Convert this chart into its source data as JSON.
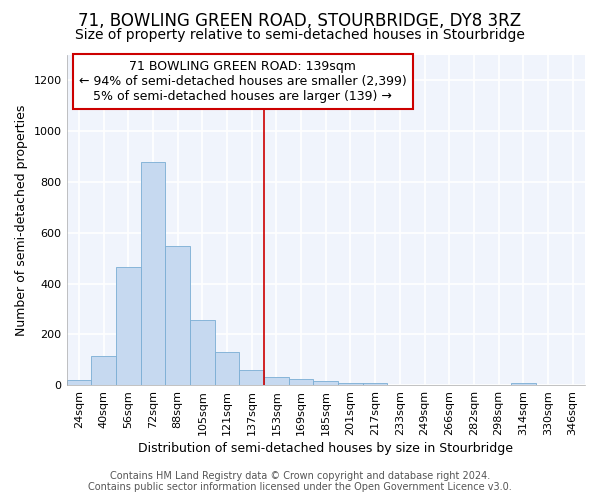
{
  "title": "71, BOWLING GREEN ROAD, STOURBRIDGE, DY8 3RZ",
  "subtitle": "Size of property relative to semi-detached houses in Stourbridge",
  "xlabel": "Distribution of semi-detached houses by size in Stourbridge",
  "ylabel": "Number of semi-detached properties",
  "categories": [
    "24sqm",
    "40sqm",
    "56sqm",
    "72sqm",
    "88sqm",
    "105sqm",
    "121sqm",
    "137sqm",
    "153sqm",
    "169sqm",
    "185sqm",
    "201sqm",
    "217sqm",
    "233sqm",
    "249sqm",
    "266sqm",
    "282sqm",
    "298sqm",
    "314sqm",
    "330sqm",
    "346sqm"
  ],
  "values": [
    20,
    115,
    465,
    880,
    548,
    255,
    130,
    60,
    30,
    22,
    15,
    10,
    10,
    0,
    0,
    0,
    0,
    0,
    10,
    0,
    0
  ],
  "bar_color": "#c6d9f0",
  "bar_edge_color": "#7aadd4",
  "vline_x_index": 7,
  "vline_color": "#cc0000",
  "ylim": [
    0,
    1300
  ],
  "yticks": [
    0,
    200,
    400,
    600,
    800,
    1000,
    1200
  ],
  "annotation_title": "71 BOWLING GREEN ROAD: 139sqm",
  "annotation_line1": "← 94% of semi-detached houses are smaller (2,399)",
  "annotation_line2": "5% of semi-detached houses are larger (139) →",
  "annotation_box_color": "#ffffff",
  "annotation_box_edge": "#cc0000",
  "footer1": "Contains HM Land Registry data © Crown copyright and database right 2024.",
  "footer2": "Contains public sector information licensed under the Open Government Licence v3.0.",
  "background_color": "#ffffff",
  "plot_bg_color": "#f0f4fc",
  "grid_color": "#ffffff",
  "title_fontsize": 12,
  "subtitle_fontsize": 10,
  "tick_fontsize": 8,
  "ylabel_fontsize": 9,
  "xlabel_fontsize": 9,
  "annotation_fontsize": 9,
  "footer_fontsize": 7
}
